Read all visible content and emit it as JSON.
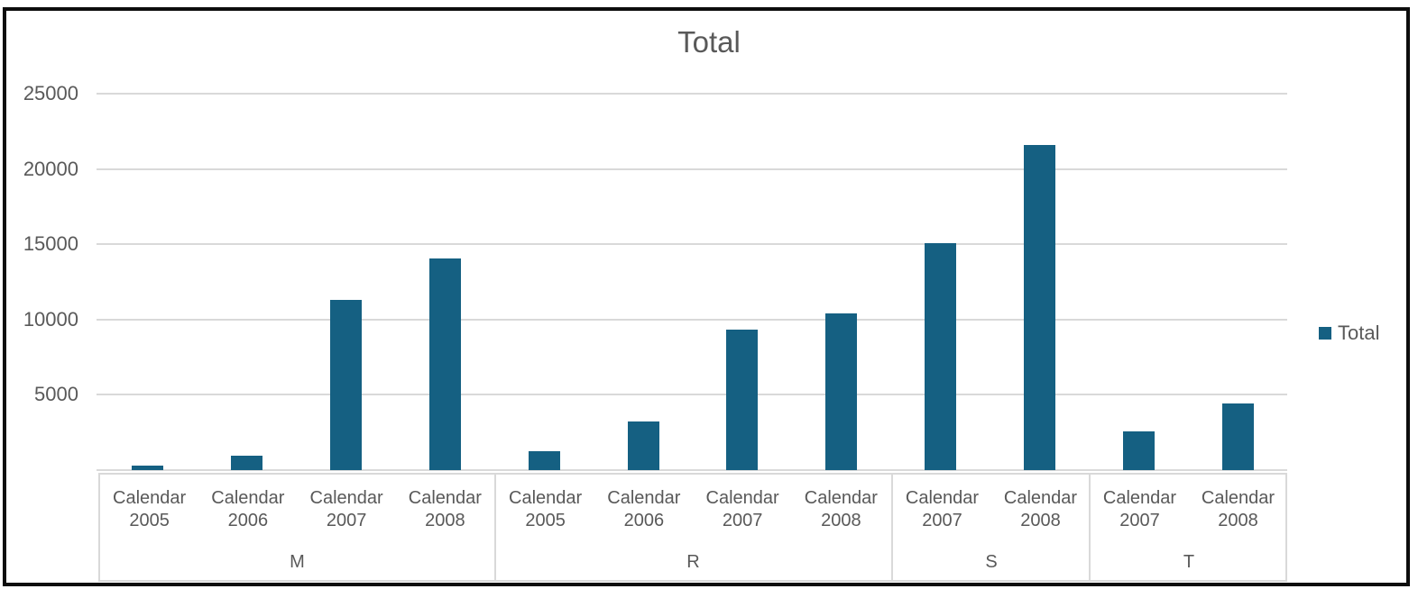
{
  "colors": {
    "accent": "#156082",
    "grid": "#d9d9d9",
    "text": "#595959",
    "frame_border": "#0d0d0d",
    "background": "#ffffff"
  },
  "chart_data": {
    "type": "bar",
    "title": "Total",
    "xlabel": "",
    "ylabel": "",
    "ylim": [
      0,
      25000
    ],
    "yticks": [
      5000,
      10000,
      15000,
      20000,
      25000
    ],
    "grid": true,
    "legend_position": "right",
    "series": [
      {
        "name": "Total",
        "color": "#156082"
      }
    ],
    "groups": [
      {
        "label": "M",
        "items": [
          {
            "category": "Calendar 2005",
            "value": 300
          },
          {
            "category": "Calendar 2006",
            "value": 950
          },
          {
            "category": "Calendar 2007",
            "value": 11300
          },
          {
            "category": "Calendar 2008",
            "value": 14050
          }
        ]
      },
      {
        "label": "R",
        "items": [
          {
            "category": "Calendar 2005",
            "value": 1250
          },
          {
            "category": "Calendar 2006",
            "value": 3200
          },
          {
            "category": "Calendar 2007",
            "value": 9350
          },
          {
            "category": "Calendar 2008",
            "value": 10400
          }
        ]
      },
      {
        "label": "S",
        "items": [
          {
            "category": "Calendar 2007",
            "value": 15050
          },
          {
            "category": "Calendar 2008",
            "value": 21600
          }
        ]
      },
      {
        "label": "T",
        "items": [
          {
            "category": "Calendar 2007",
            "value": 2550
          },
          {
            "category": "Calendar 2008",
            "value": 4450
          }
        ]
      }
    ]
  },
  "legend": {
    "label": "Total"
  }
}
